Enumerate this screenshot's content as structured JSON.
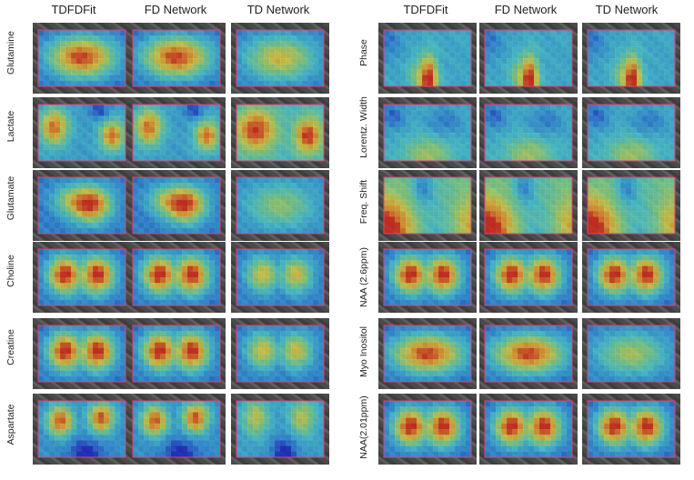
{
  "left_panel": {
    "columns": [
      "TDFDFit",
      "FD Network",
      "TD Network"
    ],
    "rows": [
      "Glutamine",
      "Lactate",
      "Glutamate",
      "Choline",
      "Creatine",
      "Aspartate"
    ]
  },
  "right_panel": {
    "columns": [
      "TDFDFit",
      "FD Network",
      "TD Network"
    ],
    "rows": [
      "Phase",
      "Lorentz. Width",
      "Freq. Shift",
      "NAA (2.6ppm)",
      "Myo Inositol",
      "NAA(2.01ppm)"
    ]
  },
  "colormap": [
    "#1a2cc8",
    "#2f8fe0",
    "#46c8d8",
    "#7fd38a",
    "#d8d24a",
    "#e8952e",
    "#d42a1a"
  ],
  "roi_outline_color": "#e0407a"
}
